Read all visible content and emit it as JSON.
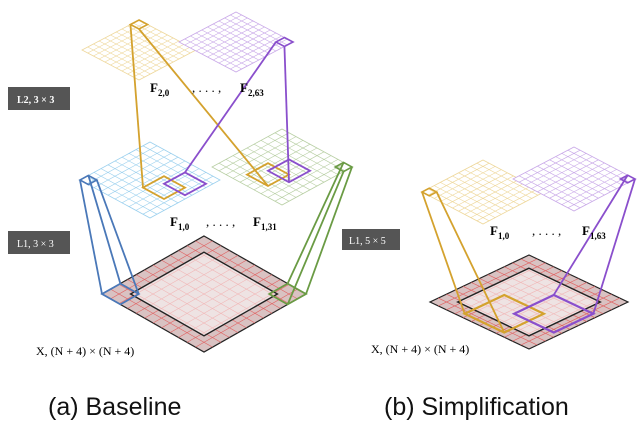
{
  "baseline": {
    "l2_badge": "L2, 3 × 3",
    "l1_badge": "L1, 3 × 3",
    "l2_first": "F",
    "l2_first_sub": "2,0",
    "l2_dots": ", . . . ,",
    "l2_last": "F",
    "l2_last_sub": "2,63",
    "l1_first": "F",
    "l1_first_sub": "1,0",
    "l1_dots": ", . . . ,",
    "l1_last": "F",
    "l1_last_sub": "1,31",
    "input_label": "X, (N + 4) × (N + 4)",
    "caption": "(a) Baseline"
  },
  "simplification": {
    "l1_badge": "L1, 5 × 5",
    "l1_first": "F",
    "l1_first_sub": "1,0",
    "l1_dots": ", . . . ,",
    "l1_last": "F",
    "l1_last_sub": "1,63",
    "input_label": "X, (N + 4) × (N + 4)",
    "caption": "(b) Simplification"
  },
  "colors": {
    "badge": "#555555",
    "gold": "#D4A22E",
    "purple": "#8A4FCC",
    "blue": "#4A78B8",
    "green": "#6A9B44",
    "red_grid": "#E06060",
    "input_fill": "#D9C2C2",
    "light_blue_grid": "#9BD0EE",
    "light_green_grid": "#B8CFA4",
    "light_gold_grid": "#EED79A",
    "light_purple_grid": "#C9A9E8"
  }
}
